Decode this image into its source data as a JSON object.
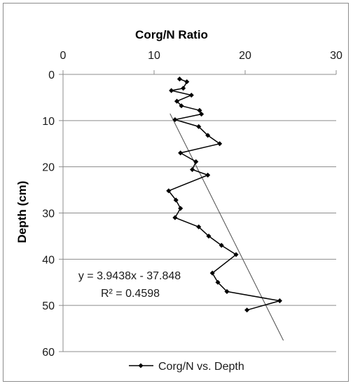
{
  "chart_data": {
    "type": "scatter",
    "title": "",
    "xlabel": "Corg/N Ratio",
    "ylabel": "Depth (cm)",
    "x_axis_position": "top",
    "y_axis_reversed": true,
    "xlim": [
      0,
      30
    ],
    "ylim": [
      0,
      60
    ],
    "x_ticks": [
      "0",
      "10",
      "20",
      "30"
    ],
    "y_ticks": [
      "0",
      "10",
      "20",
      "30",
      "40",
      "50",
      "60"
    ],
    "grid": "horizontal",
    "series": [
      {
        "name": "Corg/N vs. Depth",
        "color": "#000000",
        "marker": "diamond",
        "points": [
          {
            "x": 12.8,
            "y": 1
          },
          {
            "x": 13.6,
            "y": 1.6
          },
          {
            "x": 13.2,
            "y": 3
          },
          {
            "x": 11.9,
            "y": 3.5
          },
          {
            "x": 14.1,
            "y": 4.5
          },
          {
            "x": 12.5,
            "y": 5.8
          },
          {
            "x": 13.0,
            "y": 6.8
          },
          {
            "x": 15.0,
            "y": 7.8
          },
          {
            "x": 15.2,
            "y": 8.6
          },
          {
            "x": 12.3,
            "y": 9.8
          },
          {
            "x": 14.9,
            "y": 11.3
          },
          {
            "x": 15.9,
            "y": 13.2
          },
          {
            "x": 17.2,
            "y": 15
          },
          {
            "x": 12.9,
            "y": 17
          },
          {
            "x": 14.6,
            "y": 18.9
          },
          {
            "x": 14.2,
            "y": 20.6
          },
          {
            "x": 15.9,
            "y": 21.8
          },
          {
            "x": 11.6,
            "y": 25.2
          },
          {
            "x": 12.4,
            "y": 27.2
          },
          {
            "x": 12.9,
            "y": 29
          },
          {
            "x": 12.3,
            "y": 31
          },
          {
            "x": 14.9,
            "y": 33
          },
          {
            "x": 16.0,
            "y": 35
          },
          {
            "x": 17.4,
            "y": 37
          },
          {
            "x": 19.0,
            "y": 39
          },
          {
            "x": 16.4,
            "y": 43
          },
          {
            "x": 17.0,
            "y": 45
          },
          {
            "x": 18.0,
            "y": 47
          },
          {
            "x": 23.8,
            "y": 49
          },
          {
            "x": 20.2,
            "y": 51
          }
        ]
      }
    ],
    "trendline": {
      "type": "linear",
      "equation": "y = 3.9438x - 37.848",
      "r_squared": "R² = 0.4598",
      "slope": 3.9438,
      "intercept": -37.848,
      "x_range": [
        11.75,
        24.2
      ]
    },
    "legend_position": "bottom",
    "colors": {
      "series": "#000000",
      "trendline": "#4d4d4d",
      "gridline": "#8c8c8c",
      "axis": "#8c8c8c",
      "frame": "#8c8c8c"
    }
  }
}
